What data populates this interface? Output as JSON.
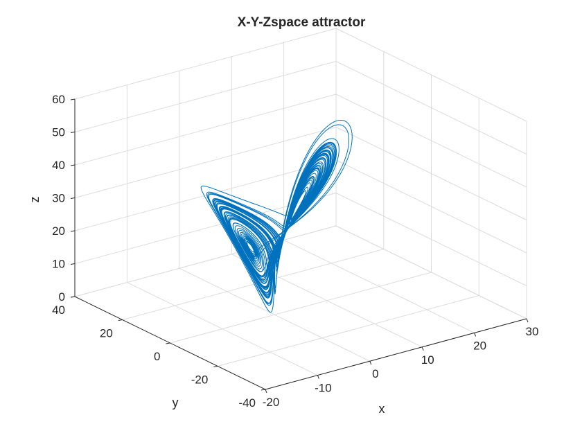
{
  "chart_data": {
    "type": "line",
    "subtype": "3d-line",
    "title": "X-Y-Zspace attractor",
    "xlabel": "x",
    "ylabel": "y",
    "zlabel": "z",
    "xlim": [
      -20,
      30
    ],
    "ylim": [
      -40,
      40
    ],
    "zlim": [
      0,
      60
    ],
    "xticks": [
      "-20",
      "-10",
      "0",
      "10",
      "20",
      "30"
    ],
    "yticks": [
      "-40",
      "-20",
      "0",
      "20",
      "40"
    ],
    "zticks": [
      "0",
      "10",
      "20",
      "30",
      "40",
      "50",
      "60"
    ],
    "grid": true,
    "line_color": "#0072BD",
    "series": [
      {
        "description_of_shape": "Lorenz-type chaotic attractor with two lobes",
        "left_lobe_center": {
          "x": -8,
          "y": -8,
          "z": 27
        },
        "right_lobe_center": {
          "x": 8,
          "y": 8,
          "z": 27
        },
        "z_range": [
          0,
          58
        ]
      }
    ]
  }
}
